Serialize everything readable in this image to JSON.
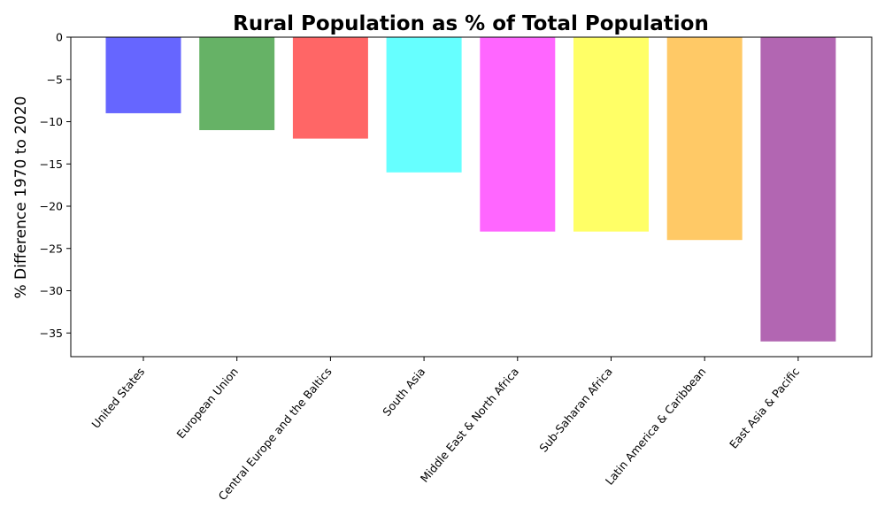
{
  "chart_data": {
    "type": "bar",
    "title": "Rural Population as % of Total Population",
    "xlabel": "",
    "ylabel": "% Difference 1970 to 2020",
    "categories": [
      "United States",
      "European Union",
      "Central Europe and the Baltics",
      "South Asia",
      "Middle East & North Africa",
      "Sub-Saharan Africa",
      "Latin America & Caribbean",
      "East Asia & Pacific"
    ],
    "values": [
      -9,
      -11,
      -12,
      -16,
      -23,
      -23,
      -24,
      -36
    ],
    "colors": [
      "#6666ff",
      "#66b266",
      "#ff6666",
      "#66ffff",
      "#ff66ff",
      "#ffff66",
      "#ffc966",
      "#b266b2"
    ],
    "ylim": [
      -37.8,
      0
    ],
    "yticks": [
      0,
      -5,
      -10,
      -15,
      -20,
      -25,
      -30,
      -35
    ],
    "ytick_labels": [
      "0",
      "−5",
      "−10",
      "−15",
      "−20",
      "−25",
      "−30",
      "−35"
    ],
    "grid": false,
    "legend": "none"
  }
}
